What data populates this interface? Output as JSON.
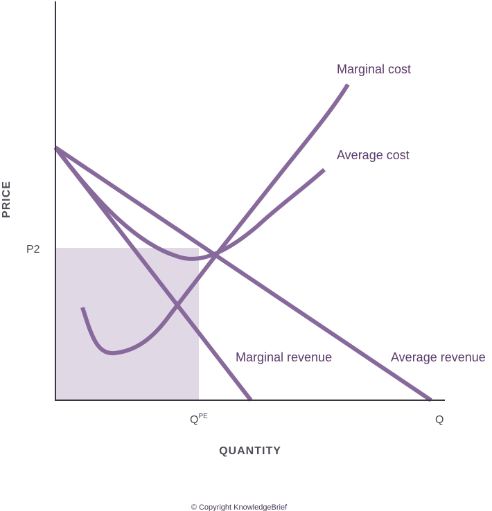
{
  "colors": {
    "curve": "#88699c",
    "curve_label": "#5a3a6a",
    "axis": "#3a3442",
    "axis_label": "#4f4a55",
    "shade": "#e1d8e6",
    "copyright": "#4a3a5a"
  },
  "axes": {
    "y_title": "PRICE",
    "x_title": "QUANTITY",
    "y_tick": "P2",
    "x_tick_qpe_base": "Q",
    "x_tick_qpe_sup": "PE",
    "x_tick_q": "Q"
  },
  "curves": {
    "marginal_cost": "Marginal cost",
    "average_cost": "Average cost",
    "marginal_revenue": "Marginal revenue",
    "average_revenue": "Average revenue"
  },
  "footer": {
    "copyright": "© Copyright KnowledgeBrief"
  }
}
